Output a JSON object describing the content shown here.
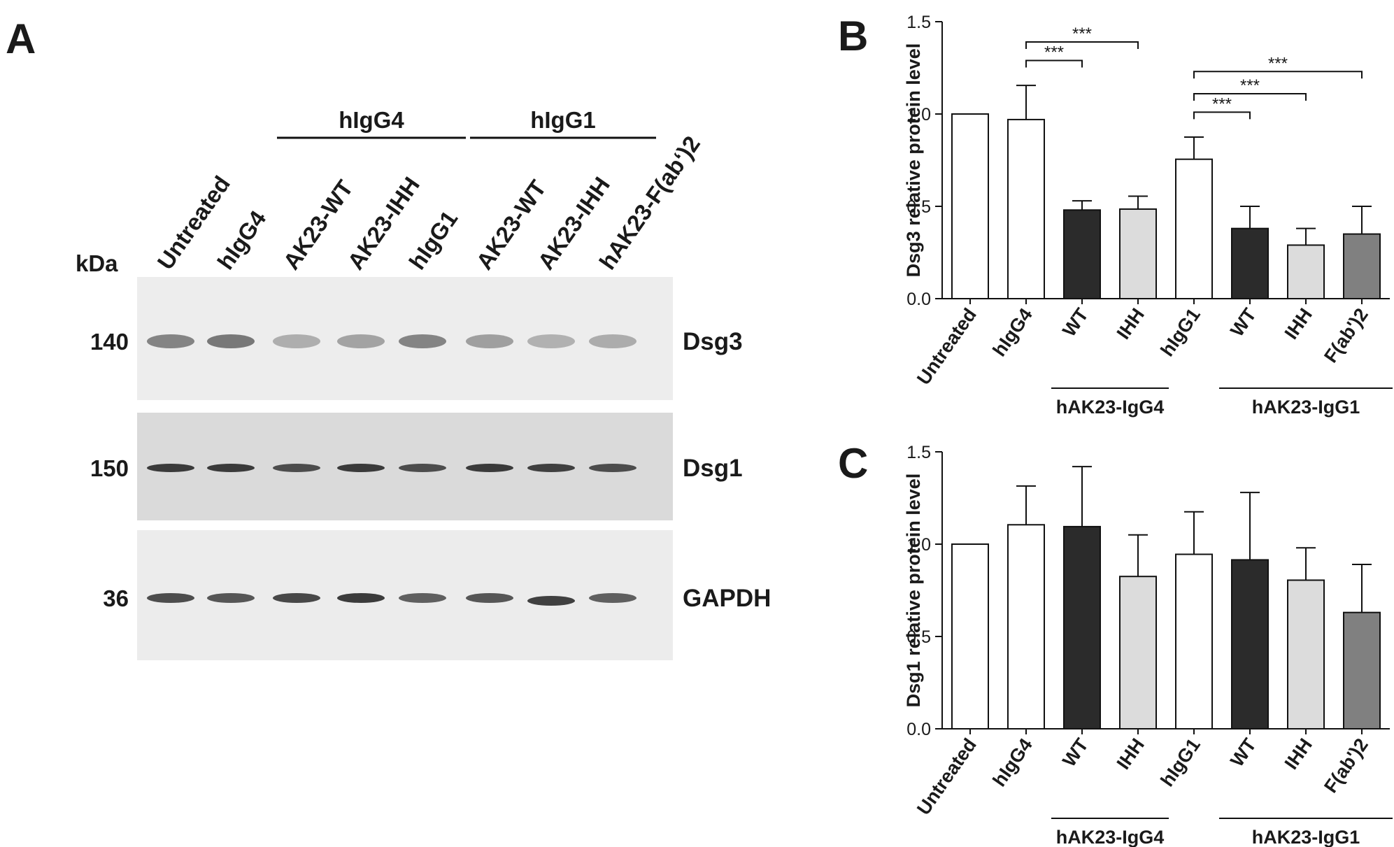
{
  "panel_a": {
    "letter": "A",
    "kda_label": "kDa",
    "groups": [
      {
        "label": "hIgG4",
        "first_lane": 2,
        "last_lane": 4
      },
      {
        "label": "hIgG1",
        "first_lane": 5,
        "last_lane": 7
      }
    ],
    "lanes": [
      "Untreated",
      "hIgG4",
      "AK23-WT",
      "AK23-IHH",
      "hIgG1",
      "AK23-WT",
      "AK23-IHH",
      "hAK23-F(ab‘)2"
    ],
    "blots": [
      {
        "marker": "140",
        "protein": "Dsg3",
        "background": "#ededed",
        "band_darkness": [
          0.55,
          0.62,
          0.32,
          0.38,
          0.55,
          0.4,
          0.3,
          0.33
        ],
        "band_thickness": 10
      },
      {
        "marker": "150",
        "protein": "Dsg1",
        "background": "#dadada",
        "band_darkness": [
          0.95,
          0.95,
          0.85,
          0.95,
          0.85,
          0.95,
          0.92,
          0.85
        ],
        "band_thickness": 6
      },
      {
        "marker": "36",
        "protein": "GAPDH",
        "background": "#ececec",
        "band_darkness": [
          0.85,
          0.8,
          0.88,
          0.95,
          0.75,
          0.8,
          0.92,
          0.75
        ],
        "band_thickness": 7
      }
    ]
  },
  "chart_data": [
    {
      "panel": "B",
      "type": "bar",
      "ylabel": "Dsg3 relative protein level",
      "ylim": [
        0,
        1.5
      ],
      "yticks": [
        "0.0",
        "0.5",
        "1.0",
        "1.5"
      ],
      "categories": [
        "Untreated",
        "hIgG4",
        "WT",
        "IHH",
        "hIgG1",
        "WT",
        "IHH",
        "F(ab')2"
      ],
      "values": [
        1.0,
        0.97,
        0.48,
        0.485,
        0.755,
        0.38,
        0.29,
        0.35
      ],
      "errors": [
        0,
        0.185,
        0.05,
        0.07,
        0.12,
        0.12,
        0.09,
        0.15
      ],
      "fills": [
        "#ffffff",
        "#ffffff",
        "#2b2b2b",
        "#dcdcdc",
        "#ffffff",
        "#2b2b2b",
        "#dcdcdc",
        "#808080"
      ],
      "group_labels": [
        {
          "label": "hAK23-IgG4",
          "first": 2,
          "last": 3
        },
        {
          "label": "hAK23-IgG1",
          "first": 5,
          "last": 7
        }
      ],
      "significance": [
        {
          "from": 1,
          "to": 2,
          "y": 1.29,
          "label": "***"
        },
        {
          "from": 1,
          "to": 3,
          "y": 1.39,
          "label": "***"
        },
        {
          "from": 4,
          "to": 5,
          "y": 1.01,
          "label": "***"
        },
        {
          "from": 4,
          "to": 6,
          "y": 1.11,
          "label": "***"
        },
        {
          "from": 4,
          "to": 7,
          "y": 1.23,
          "label": "***"
        }
      ]
    },
    {
      "panel": "C",
      "type": "bar",
      "ylabel": "Dsg1 relative protein level",
      "ylim": [
        0,
        1.5
      ],
      "yticks": [
        "0.0",
        "0.5",
        "1.0",
        "1.5"
      ],
      "categories": [
        "Untreated",
        "hIgG4",
        "WT",
        "IHH",
        "hIgG1",
        "WT",
        "IHH",
        "F(ab')2"
      ],
      "values": [
        1.0,
        1.105,
        1.095,
        0.825,
        0.945,
        0.915,
        0.805,
        0.63
      ],
      "errors": [
        0,
        0.21,
        0.325,
        0.225,
        0.23,
        0.365,
        0.175,
        0.26
      ],
      "fills": [
        "#ffffff",
        "#ffffff",
        "#2b2b2b",
        "#dcdcdc",
        "#ffffff",
        "#2b2b2b",
        "#dcdcdc",
        "#808080"
      ],
      "group_labels": [
        {
          "label": "hAK23-IgG4",
          "first": 2,
          "last": 3
        },
        {
          "label": "hAK23-IgG1",
          "first": 5,
          "last": 7
        }
      ],
      "significance": []
    }
  ]
}
